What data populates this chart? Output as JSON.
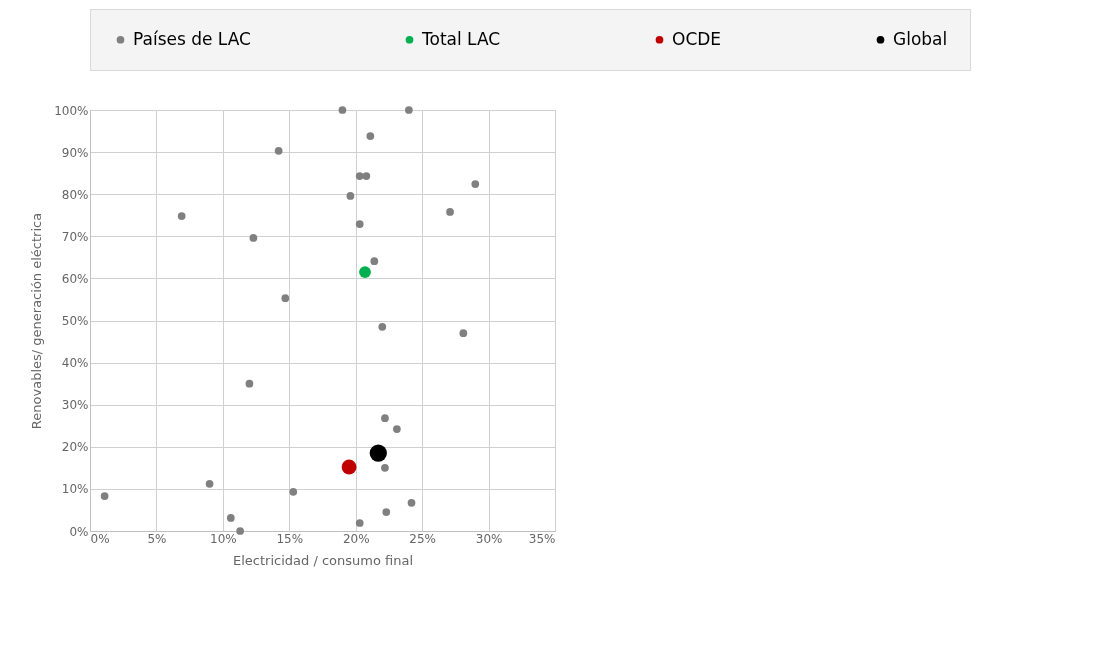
{
  "chart_data": {
    "type": "scatter",
    "xlabel": "Electricidad / consumo final",
    "ylabel": "Renovables/ generación eléctrica",
    "xlim": [
      0,
      35
    ],
    "xticks": [
      {
        "value": 0,
        "label": "0%"
      },
      {
        "value": 5,
        "label": "5%"
      },
      {
        "value": 10,
        "label": "10%"
      },
      {
        "value": 15,
        "label": "15%"
      },
      {
        "value": 20,
        "label": "20%"
      },
      {
        "value": 25,
        "label": "25%"
      },
      {
        "value": 30,
        "label": "30%"
      },
      {
        "value": 35,
        "label": "35%"
      }
    ],
    "ylim": [
      0,
      100
    ],
    "yticks": [
      {
        "value": 0,
        "label": "0%"
      },
      {
        "value": 10,
        "label": "10%"
      },
      {
        "value": 20,
        "label": "20%"
      },
      {
        "value": 30,
        "label": "30%"
      },
      {
        "value": 40,
        "label": "40%"
      },
      {
        "value": 50,
        "label": "50%"
      },
      {
        "value": 60,
        "label": "60%"
      },
      {
        "value": 70,
        "label": "70%"
      },
      {
        "value": 80,
        "label": "80%"
      },
      {
        "value": 90,
        "label": "90%"
      },
      {
        "value": 100,
        "label": "100%"
      }
    ],
    "grid": true,
    "legend": "top",
    "marker": "circle",
    "series": [
      {
        "name": "Países de LAC",
        "color": "#808080",
        "x": [
          19.0,
          24.0,
          21.1,
          14.2,
          20.3,
          20.8,
          29.0,
          19.6,
          6.9,
          27.1,
          20.3,
          12.3,
          21.4,
          14.7,
          22.0,
          28.1,
          12.0,
          22.2,
          23.1,
          22.2,
          24.2,
          22.3,
          20.3,
          1.1,
          9.0,
          10.6,
          11.3,
          15.3
        ],
        "values": [
          100,
          100,
          93.8,
          90.3,
          84.3,
          84.3,
          82.4,
          79.6,
          74.8,
          75.8,
          72.9,
          69.6,
          64.1,
          55.3,
          48.5,
          47.0,
          35.0,
          26.8,
          24.2,
          15.0,
          6.7,
          4.5,
          1.9,
          8.3,
          11.2,
          3.1,
          0,
          9.3
        ]
      },
      {
        "name": "Total LAC",
        "color": "#00b050",
        "x": [
          20.7
        ],
        "values": [
          61.5
        ]
      },
      {
        "name": "OCDE",
        "color": "#c00000",
        "x": [
          19.5
        ],
        "values": [
          15.2
        ]
      },
      {
        "name": "Global",
        "color": "#000000",
        "x": [
          21.7
        ],
        "values": [
          18.5
        ]
      }
    ]
  }
}
